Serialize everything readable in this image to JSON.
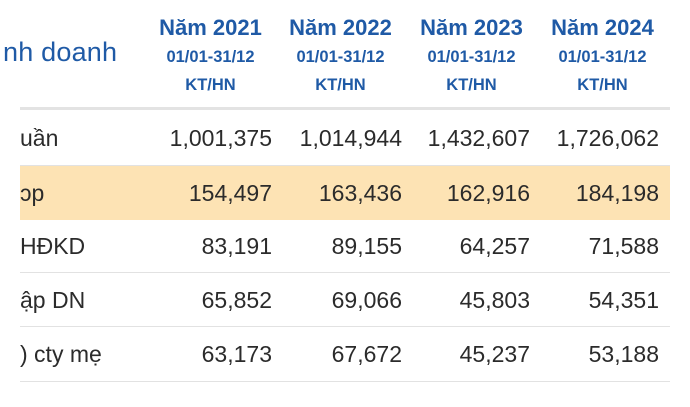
{
  "table": {
    "section_title": "nh doanh",
    "columns": [
      {
        "year": "Năm 2021",
        "period": "01/01-31/12",
        "unit": "KT/HN"
      },
      {
        "year": "Năm 2022",
        "period": "01/01-31/12",
        "unit": "KT/HN"
      },
      {
        "year": "Năm 2023",
        "period": "01/01-31/12",
        "unit": "KT/HN"
      },
      {
        "year": "Năm 2024",
        "period": "01/01-31/12",
        "unit": "KT/HN"
      }
    ],
    "rows": [
      {
        "label": "uần",
        "values": [
          "1,001,375",
          "1,014,944",
          "1,432,607",
          "1,726,062"
        ]
      },
      {
        "label": "ɔp",
        "values": [
          "154,497",
          "163,436",
          "162,916",
          "184,198"
        ]
      },
      {
        "label": "HĐKD",
        "values": [
          "83,191",
          "89,155",
          "64,257",
          "71,588"
        ]
      },
      {
        "label": "ập DN",
        "values": [
          "65,852",
          "69,066",
          "45,803",
          "54,351"
        ]
      },
      {
        "label": ") cty mẹ",
        "values": [
          "63,173",
          "67,672",
          "45,237",
          "53,188"
        ]
      }
    ]
  },
  "colors": {
    "header_text": "#1f5aa6",
    "highlight_row": "#fde3b4",
    "body_text": "#2b2b2b"
  }
}
